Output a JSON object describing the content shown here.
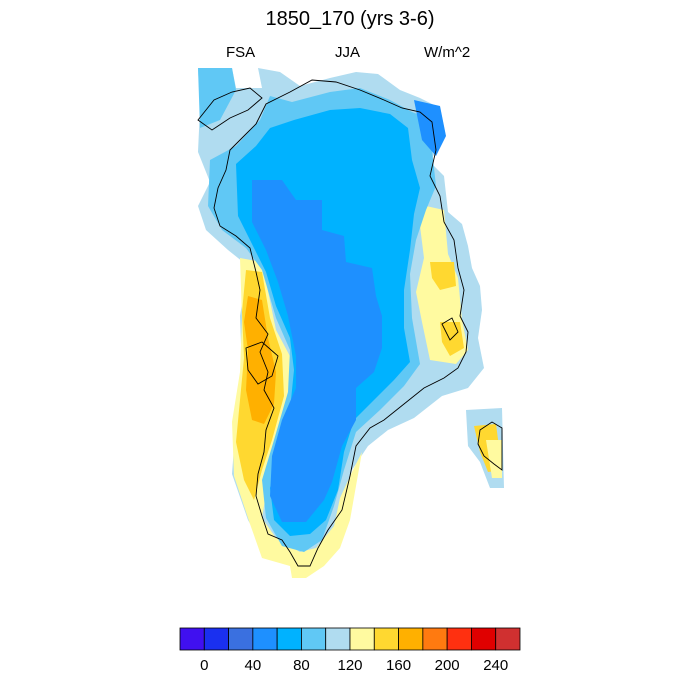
{
  "title": "1850_170 (yrs 3-6)",
  "subtitle_left": "FSA",
  "subtitle_center": "JJA",
  "subtitle_right": "W/m^2",
  "colorbar": {
    "colors": [
      "#4010f0",
      "#1a30f0",
      "#3a70e0",
      "#1e90ff",
      "#00b2ff",
      "#60c8f5",
      "#b0dcf0",
      "#fffaa0",
      "#ffd830",
      "#ffb000",
      "#ff7a10",
      "#ff3010",
      "#e00000",
      "#d03030"
    ],
    "tick_labels": [
      "0",
      "40",
      "80",
      "120",
      "160",
      "200",
      "240"
    ]
  },
  "legend_classes": {
    "deep_blue": "#1e90ff",
    "sky_blue": "#00b2ff",
    "light_blue": "#60c8f5",
    "pale_blue": "#b0dcf0",
    "pale_yellow": "#fffaa0",
    "yellow": "#ffd830",
    "orange": "#ffb000"
  }
}
